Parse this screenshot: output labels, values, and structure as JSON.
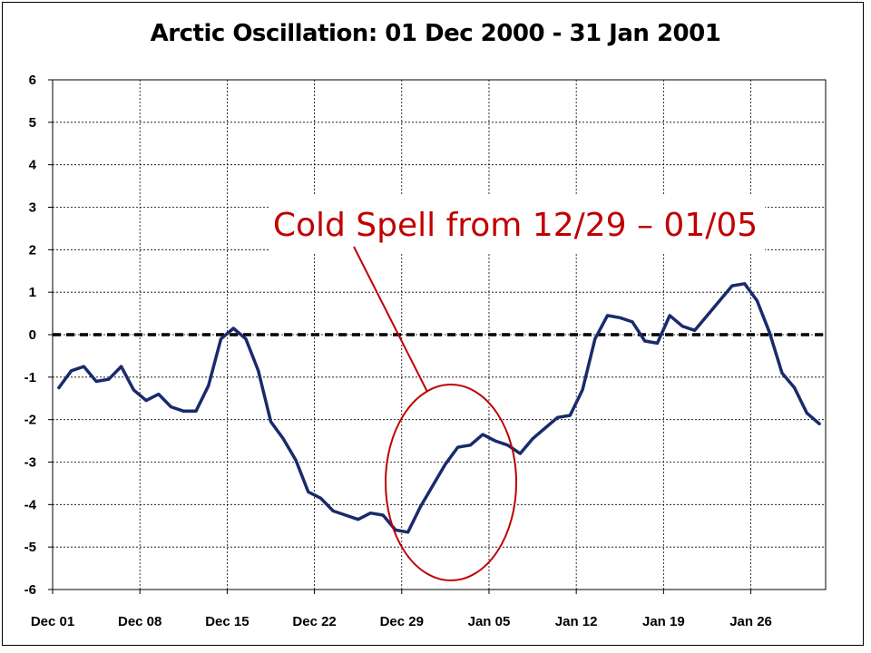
{
  "chart_data": {
    "type": "line",
    "title": "Arctic Oscillation: 01 Dec 2000 - 31 Jan 2001",
    "xlabel": "",
    "ylabel": "",
    "ylim": [
      -6,
      6
    ],
    "y_ticks": [
      "6",
      "5",
      "4",
      "3",
      "2",
      "1",
      "0",
      "-1",
      "-2",
      "-3",
      "-4",
      "-5",
      "-6"
    ],
    "x_ticks": [
      "Dec 01",
      "Dec 08",
      "Dec 15",
      "Dec 22",
      "Dec 29",
      "Jan 05",
      "Jan 12",
      "Jan 19",
      "Jan 26"
    ],
    "grid": true,
    "reference_line": 0,
    "series": [
      {
        "color": "#1a2a6c",
        "x": [
          "Dec 01",
          "Dec 02",
          "Dec 03",
          "Dec 04",
          "Dec 05",
          "Dec 06",
          "Dec 07",
          "Dec 08",
          "Dec 09",
          "Dec 10",
          "Dec 11",
          "Dec 12",
          "Dec 13",
          "Dec 14",
          "Dec 15",
          "Dec 16",
          "Dec 17",
          "Dec 18",
          "Dec 19",
          "Dec 20",
          "Dec 21",
          "Dec 22",
          "Dec 23",
          "Dec 24",
          "Dec 25",
          "Dec 26",
          "Dec 27",
          "Dec 28",
          "Dec 29",
          "Dec 30",
          "Dec 31",
          "Jan 01",
          "Jan 02",
          "Jan 03",
          "Jan 04",
          "Jan 05",
          "Jan 06",
          "Jan 07",
          "Jan 08",
          "Jan 09",
          "Jan 10",
          "Jan 11",
          "Jan 12",
          "Jan 13",
          "Jan 14",
          "Jan 15",
          "Jan 16",
          "Jan 17",
          "Jan 18",
          "Jan 19",
          "Jan 20",
          "Jan 21",
          "Jan 22",
          "Jan 23",
          "Jan 24",
          "Jan 25",
          "Jan 26",
          "Jan 27",
          "Jan 28",
          "Jan 29",
          "Jan 30",
          "Jan 31"
        ],
        "values": [
          -1.25,
          -0.85,
          -0.75,
          -1.1,
          -1.05,
          -0.75,
          -1.3,
          -1.55,
          -1.4,
          -1.7,
          -1.8,
          -1.8,
          -1.2,
          -0.1,
          0.15,
          -0.1,
          -0.85,
          -2.05,
          -2.45,
          -2.95,
          -3.7,
          -3.85,
          -4.15,
          -4.25,
          -4.35,
          -4.2,
          -4.25,
          -4.6,
          -4.65,
          -4.05,
          -3.55,
          -3.05,
          -2.65,
          -2.6,
          -2.35,
          -2.5,
          -2.6,
          -2.8,
          -2.45,
          -2.2,
          -1.95,
          -1.9,
          -1.3,
          -0.1,
          0.45,
          0.4,
          0.3,
          -0.15,
          -0.2,
          0.45,
          0.2,
          0.1,
          0.45,
          0.8,
          1.15,
          1.2,
          0.8,
          0.05,
          -0.9,
          -1.25,
          -1.85,
          -2.1
        ]
      }
    ],
    "annotation": {
      "text": "Cold Spell from 12/29 – 01/05",
      "color": "#c00000"
    }
  }
}
